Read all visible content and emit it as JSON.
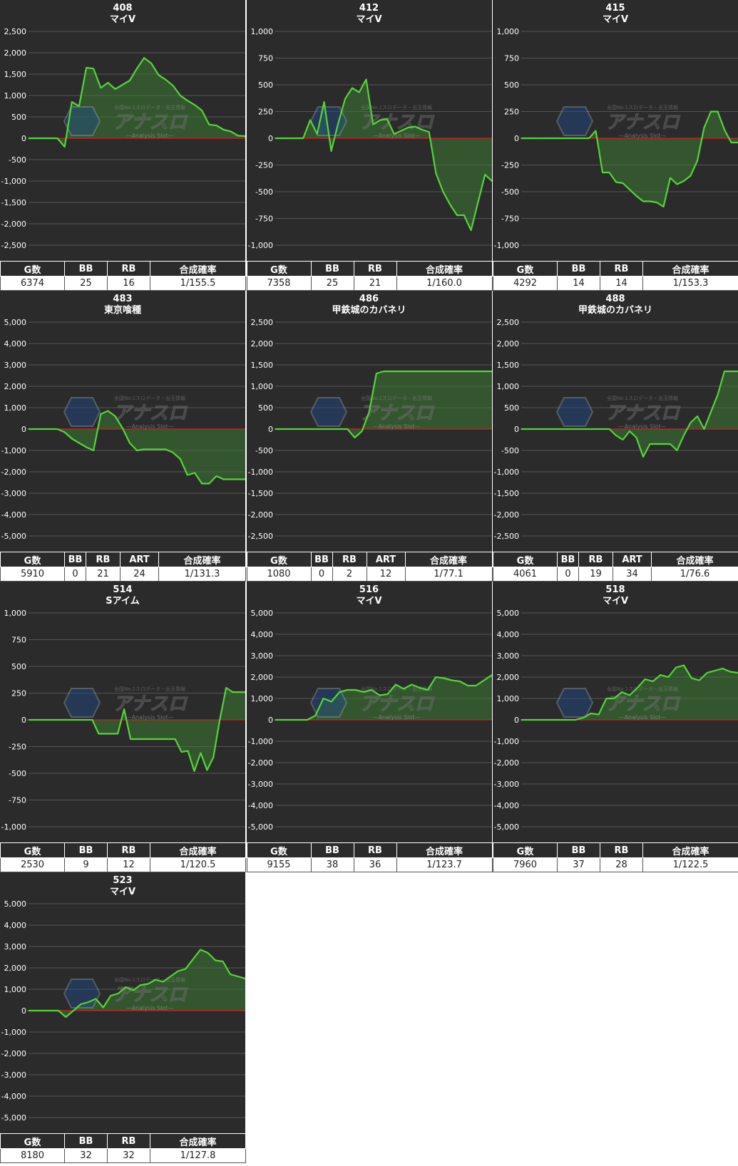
{
  "colors": {
    "panel_bg": "#2b2b2b",
    "grid": "#555555",
    "zero_line": "#cc2222",
    "line": "#55d43a",
    "fill": "#3c7a33"
  },
  "watermark": {
    "brand": "アナスロ",
    "tagline": "—Analysis Slot—",
    "top_text": "全国No.1スロデータ・出玉情報"
  },
  "panels": [
    {
      "number": "408",
      "machine": "マイV",
      "columns": [
        "G数",
        "BB",
        "RB",
        "合成確率"
      ],
      "values": [
        "6374",
        "25",
        "16",
        "1/155.5"
      ],
      "col_widths": [
        90,
        60,
        60,
        134
      ],
      "ticks": [
        "2,500",
        "2,000",
        "1,500",
        "1,000",
        "500",
        "0",
        "-500",
        "-1,000",
        "-1,500",
        "-2,000",
        "-2,500"
      ]
    },
    {
      "number": "412",
      "machine": "マイV",
      "columns": [
        "G数",
        "BB",
        "RB",
        "合成確率"
      ],
      "values": [
        "7358",
        "25",
        "21",
        "1/160.0"
      ],
      "col_widths": [
        90,
        60,
        60,
        134
      ],
      "ticks": [
        "1,000",
        "750",
        "500",
        "250",
        "0",
        "-250",
        "-500",
        "-750",
        "-1,000"
      ]
    },
    {
      "number": "415",
      "machine": "マイV",
      "columns": [
        "G数",
        "BB",
        "RB",
        "合成確率"
      ],
      "values": [
        "4292",
        "14",
        "14",
        "1/153.3"
      ],
      "col_widths": [
        90,
        60,
        60,
        134
      ],
      "ticks": [
        "1,000",
        "750",
        "500",
        "250",
        "0",
        "-250",
        "-500",
        "-750",
        "-1,000"
      ]
    },
    {
      "number": "483",
      "machine": "東京喰種",
      "columns": [
        "G数",
        "BB",
        "RB",
        "ART",
        "合成確率"
      ],
      "values": [
        "5910",
        "0",
        "21",
        "24",
        "1/131.3"
      ],
      "col_widths": [
        90,
        30,
        48,
        54,
        122
      ],
      "ticks": [
        "5,000",
        "4,000",
        "3,000",
        "2,000",
        "1,000",
        "0",
        "-1,000",
        "-2,000",
        "-3,000",
        "-4,000",
        "-5,000"
      ]
    },
    {
      "number": "486",
      "machine": "甲鉄城のカバネリ",
      "columns": [
        "G数",
        "BB",
        "RB",
        "ART",
        "合成確率"
      ],
      "values": [
        "1080",
        "0",
        "2",
        "12",
        "1/77.1"
      ],
      "col_widths": [
        90,
        30,
        48,
        54,
        122
      ],
      "ticks": [
        "2,500",
        "2,000",
        "1,500",
        "1,000",
        "500",
        "0",
        "-500",
        "-1,000",
        "-1,500",
        "-2,000",
        "-2,500"
      ]
    },
    {
      "number": "488",
      "machine": "甲鉄城のカバネリ",
      "columns": [
        "G数",
        "BB",
        "RB",
        "ART",
        "合成確率"
      ],
      "values": [
        "4061",
        "0",
        "19",
        "34",
        "1/76.6"
      ],
      "col_widths": [
        90,
        30,
        48,
        54,
        122
      ],
      "ticks": [
        "2,500",
        "2,000",
        "1,500",
        "1,000",
        "500",
        "0",
        "-500",
        "-1,000",
        "-1,500",
        "-2,000",
        "-2,500"
      ]
    },
    {
      "number": "514",
      "machine": "Sアイム",
      "columns": [
        "G数",
        "BB",
        "RB",
        "合成確率"
      ],
      "values": [
        "2530",
        "9",
        "12",
        "1/120.5"
      ],
      "col_widths": [
        90,
        60,
        60,
        134
      ],
      "ticks": [
        "1,000",
        "750",
        "500",
        "250",
        "0",
        "-250",
        "-500",
        "-750",
        "-1,000"
      ]
    },
    {
      "number": "516",
      "machine": "マイV",
      "columns": [
        "G数",
        "BB",
        "RB",
        "合成確率"
      ],
      "values": [
        "9155",
        "38",
        "36",
        "1/123.7"
      ],
      "col_widths": [
        90,
        60,
        60,
        134
      ],
      "ticks": [
        "5,000",
        "4,000",
        "3,000",
        "2,000",
        "1,000",
        "0",
        "-1,000",
        "-2,000",
        "-3,000",
        "-4,000",
        "-5,000"
      ]
    },
    {
      "number": "518",
      "machine": "マイV",
      "columns": [
        "G数",
        "BB",
        "RB",
        "合成確率"
      ],
      "values": [
        "7960",
        "37",
        "28",
        "1/122.5"
      ],
      "col_widths": [
        90,
        60,
        60,
        134
      ],
      "ticks": [
        "5,000",
        "4,000",
        "3,000",
        "2,000",
        "1,000",
        "0",
        "-1,000",
        "-2,000",
        "-3,000",
        "-4,000",
        "-5,000"
      ]
    },
    {
      "number": "523",
      "machine": "マイV",
      "columns": [
        "G数",
        "BB",
        "RB",
        "合成確率"
      ],
      "values": [
        "8180",
        "32",
        "32",
        "1/127.8"
      ],
      "col_widths": [
        90,
        60,
        60,
        134
      ],
      "ticks": [
        "5,000",
        "4,000",
        "3,000",
        "2,000",
        "1,000",
        "0",
        "-1,000",
        "-2,000",
        "-3,000",
        "-4,000",
        "-5,000"
      ]
    }
  ],
  "chart_data": [
    {
      "type": "area",
      "title": "408 マイV",
      "ylim": [
        -2500,
        2500
      ],
      "grid": true,
      "values": [
        0,
        0,
        0,
        0,
        0,
        -200,
        850,
        750,
        1650,
        1630,
        1180,
        1300,
        1150,
        1250,
        1350,
        1630,
        1880,
        1750,
        1480,
        1370,
        1230,
        1000,
        880,
        780,
        650,
        320,
        300,
        200,
        160,
        60,
        50
      ]
    },
    {
      "type": "area",
      "title": "412 マイV",
      "ylim": [
        -1000,
        1000
      ],
      "grid": true,
      "values": [
        0,
        0,
        0,
        0,
        0,
        170,
        40,
        340,
        -120,
        140,
        370,
        470,
        430,
        550,
        130,
        170,
        180,
        40,
        70,
        100,
        110,
        80,
        60,
        -330,
        -500,
        -620,
        -720,
        -720,
        -860,
        -600,
        -340,
        -400
      ]
    },
    {
      "type": "area",
      "title": "415 マイV",
      "ylim": [
        -1000,
        1000
      ],
      "grid": true,
      "values": [
        0,
        0,
        0,
        0,
        0,
        0,
        0,
        0,
        0,
        0,
        0,
        70,
        -320,
        -320,
        -410,
        -420,
        -480,
        -540,
        -590,
        -590,
        -600,
        -640,
        -370,
        -430,
        -400,
        -350,
        -210,
        100,
        250,
        250,
        80,
        -40,
        -40
      ]
    },
    {
      "type": "area",
      "title": "483 東京喰種",
      "ylim": [
        -5000,
        5000
      ],
      "grid": true,
      "values": [
        0,
        0,
        0,
        0,
        0,
        -150,
        -450,
        -650,
        -850,
        -1000,
        700,
        850,
        600,
        50,
        -650,
        -1000,
        -950,
        -950,
        -950,
        -950,
        -1100,
        -1400,
        -2150,
        -2050,
        -2550,
        -2550,
        -2200,
        -2350,
        -2350,
        -2350,
        -2350
      ]
    },
    {
      "type": "area",
      "title": "486 甲鉄城のカバネリ",
      "ylim": [
        -2500,
        2500
      ],
      "grid": true,
      "values": [
        0,
        0,
        0,
        0,
        0,
        0,
        0,
        0,
        0,
        0,
        0,
        -200,
        -50,
        400,
        1300,
        1350,
        1350,
        1350,
        1350,
        1350,
        1350,
        1350,
        1350,
        1350,
        1350,
        1350,
        1350,
        1350,
        1350,
        1350,
        1350
      ]
    },
    {
      "type": "area",
      "title": "488 甲鉄城のカバネリ",
      "ylim": [
        -2500,
        2500
      ],
      "grid": true,
      "values": [
        0,
        0,
        0,
        0,
        0,
        0,
        0,
        0,
        0,
        0,
        0,
        0,
        0,
        0,
        -150,
        -250,
        -50,
        -200,
        -650,
        -350,
        -350,
        -350,
        -350,
        -500,
        -150,
        150,
        300,
        0,
        400,
        800,
        1350,
        1350,
        1350
      ]
    },
    {
      "type": "area",
      "title": "514 Sアイム",
      "ylim": [
        -1000,
        1000
      ],
      "grid": true,
      "values": [
        0,
        0,
        0,
        0,
        0,
        0,
        0,
        0,
        0,
        0,
        0,
        -130,
        -130,
        -130,
        -130,
        100,
        -180,
        -180,
        -180,
        -180,
        -180,
        -180,
        -180,
        -180,
        -300,
        -290,
        -480,
        -310,
        -470,
        -350,
        0,
        300,
        260,
        260,
        260
      ]
    },
    {
      "type": "area",
      "title": "516 マイV",
      "ylim": [
        -5000,
        5000
      ],
      "grid": true,
      "values": [
        0,
        0,
        0,
        0,
        0,
        200,
        1000,
        850,
        1300,
        1400,
        1400,
        1300,
        1400,
        1150,
        1200,
        1650,
        1450,
        1650,
        1500,
        1400,
        2000,
        1950,
        1850,
        1800,
        1600,
        1600,
        1850,
        2100
      ]
    },
    {
      "type": "area",
      "title": "518 マイV",
      "ylim": [
        -5000,
        5000
      ],
      "grid": true,
      "values": [
        0,
        0,
        0,
        0,
        0,
        0,
        0,
        0,
        100,
        300,
        250,
        1000,
        1000,
        1300,
        1150,
        1500,
        1900,
        1800,
        2100,
        2000,
        2450,
        2550,
        1950,
        1850,
        2200,
        2300,
        2400,
        2250,
        2200
      ]
    },
    {
      "type": "area",
      "title": "523 マイV",
      "ylim": [
        -5000,
        5000
      ],
      "grid": true,
      "values": [
        0,
        0,
        0,
        0,
        0,
        -300,
        0,
        300,
        400,
        550,
        150,
        700,
        800,
        1100,
        950,
        1200,
        1250,
        1450,
        1350,
        1600,
        1850,
        1950,
        2400,
        2850,
        2700,
        2350,
        2300,
        1700,
        1600,
        1500
      ]
    }
  ]
}
